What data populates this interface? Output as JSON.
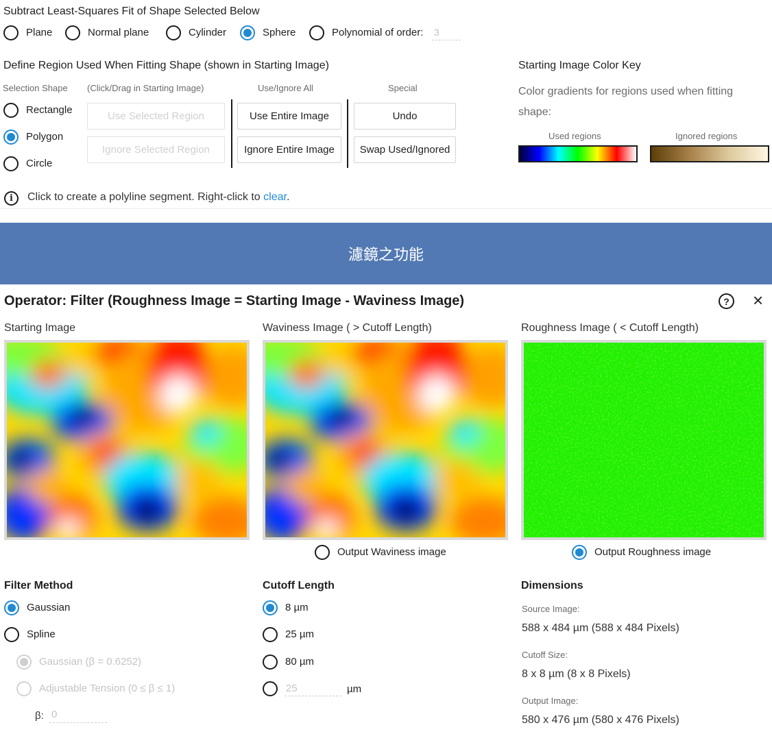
{
  "shape_fit": {
    "title": "Subtract Least-Squares Fit of Shape Selected Below",
    "options": [
      "Plane",
      "Normal plane",
      "Cylinder",
      "Sphere",
      "Polynomial of order:"
    ],
    "selected": "Sphere",
    "polynomial_order": "3"
  },
  "region": {
    "title": "Define Region Used When Fitting Shape (shown in Starting Image)",
    "selection_shape_header": "Selection Shape",
    "click_drag_header": "(Click/Drag in Starting Image)",
    "use_ignore_header": "Use/Ignore All",
    "special_header": "Special",
    "shapes": [
      "Rectangle",
      "Polygon",
      "Circle"
    ],
    "selected_shape": "Polygon",
    "use_selected": "Use Selected Region",
    "ignore_selected": "Ignore Selected Region",
    "use_entire": "Use Entire Image",
    "ignore_entire": "Ignore Entire Image",
    "undo": "Undo",
    "swap": "Swap Used/Ignored",
    "hint_prefix": "Click to create a polyline segment. Right-click to ",
    "hint_link": "clear",
    "hint_suffix": "."
  },
  "color_key": {
    "title": "Starting Image Color Key",
    "description": "Color gradients for regions used when fitting shape:",
    "used_label": "Used regions",
    "ignored_label": "Ignored regions"
  },
  "banner": {
    "text": "濾鏡之功能"
  },
  "operator": {
    "title": "Operator: Filter (Roughness Image = Starting Image - Waviness Image)",
    "help_icon": "?",
    "close_icon": "×"
  },
  "images": {
    "starting_label": "Starting Image",
    "waviness_label": "Waviness Image ( > Cutoff Length)",
    "roughness_label": "Roughness Image ( < Cutoff Length)",
    "output_waviness": "Output Waviness image",
    "output_roughness": "Output Roughness image",
    "output_selected": "Output Roughness image"
  },
  "filter_method": {
    "title": "Filter Method",
    "gaussian": "Gaussian",
    "spline": "Spline",
    "sub_gaussian": "Gaussian (β = 0.6252)",
    "sub_adjustable": "Adjustable Tension (0 ≤ β ≤ 1)",
    "beta_label": "β:",
    "beta_value": "0",
    "selected": "Gaussian"
  },
  "cutoff": {
    "title": "Cutoff Length",
    "options": [
      "8 µm",
      "25 µm",
      "80 µm"
    ],
    "custom_value": "25",
    "custom_unit": "µm",
    "selected": "8 µm"
  },
  "dimensions": {
    "title": "Dimensions",
    "source_label": "Source Image:",
    "source_value": "588 x 484 µm (588 x 484 Pixels)",
    "cutoff_label": "Cutoff Size:",
    "cutoff_value": "8 x 8 µm (8 x 8 Pixels)",
    "output_label": "Output Image:",
    "output_value": "580 x 476 µm (580 x 476 Pixels)"
  },
  "colors": {
    "accent": "#1f8ad3",
    "banner": "#5279b3",
    "link": "#1f8ad3"
  }
}
